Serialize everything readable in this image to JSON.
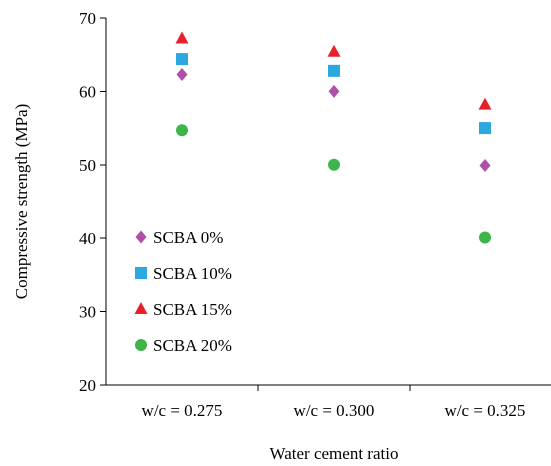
{
  "chart_data": {
    "type": "scatter",
    "categories": [
      "w/c = 0.275",
      "w/c = 0.300",
      "w/c = 0.325"
    ],
    "xlabel": "Water cement ratio",
    "ylabel": "Compressive strength (MPa)",
    "ylim": [
      20,
      70
    ],
    "yticks": [
      20,
      30,
      40,
      50,
      60,
      70
    ],
    "grid": false,
    "legend_position": "left",
    "series": [
      {
        "name": "SCBA 0%",
        "marker": "diamond",
        "color": "#B04FA8",
        "values": [
          62.3,
          60.0,
          49.9
        ]
      },
      {
        "name": "SCBA 10%",
        "marker": "square",
        "color": "#2AA8DF",
        "values": [
          64.4,
          62.8,
          55.0
        ]
      },
      {
        "name": "SCBA 15%",
        "marker": "triangle",
        "color": "#E8202A",
        "values": [
          67.2,
          65.4,
          58.2
        ]
      },
      {
        "name": "SCBA 20%",
        "marker": "circle",
        "color": "#3DB54A",
        "values": [
          54.7,
          50.0,
          40.1
        ]
      }
    ]
  }
}
